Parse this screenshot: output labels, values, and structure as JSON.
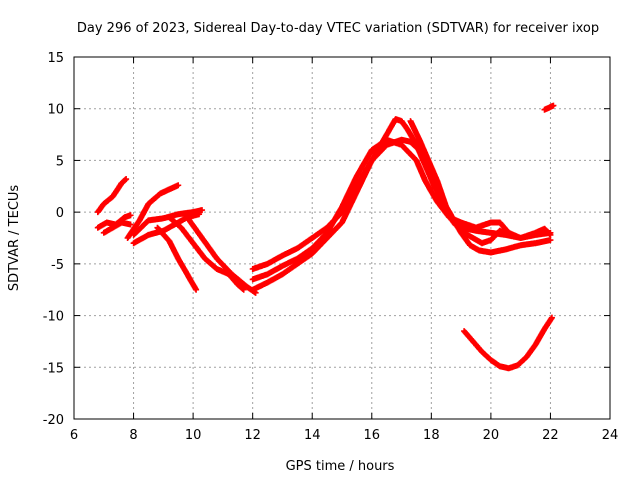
{
  "chart_data": {
    "type": "scatter",
    "title": "Day 296 of 2023, Sidereal Day-to-day VTEC variation (SDTVAR) for receiver ixop",
    "xlabel": "GPS time / hours",
    "ylabel": "SDTVAR / TECUs",
    "xlim": [
      6,
      24
    ],
    "ylim": [
      -20,
      15
    ],
    "xticks": [
      "6",
      "8",
      "10",
      "12",
      "14",
      "16",
      "18",
      "20",
      "22",
      "24"
    ],
    "yticks": [
      "15",
      "10",
      "5",
      "0",
      "-5",
      "-10",
      "-15",
      "-20"
    ],
    "grid": true,
    "marker_color": "#ff0000",
    "series": [
      {
        "name": "s1",
        "points": [
          [
            6.8,
            0.0
          ],
          [
            7.0,
            0.8
          ],
          [
            7.3,
            1.5
          ],
          [
            7.6,
            2.8
          ],
          [
            7.75,
            3.2
          ]
        ]
      },
      {
        "name": "s2",
        "points": [
          [
            6.8,
            -1.5
          ],
          [
            7.1,
            -1.0
          ],
          [
            7.4,
            -1.2
          ],
          [
            7.7,
            -0.5
          ],
          [
            7.9,
            -0.3
          ]
        ]
      },
      {
        "name": "s3",
        "points": [
          [
            7.0,
            -2.0
          ],
          [
            7.3,
            -1.5
          ],
          [
            7.6,
            -1.0
          ],
          [
            7.9,
            -1.2
          ]
        ]
      },
      {
        "name": "s4",
        "points": [
          [
            7.8,
            -2.5
          ],
          [
            8.2,
            -0.8
          ],
          [
            8.5,
            0.8
          ],
          [
            8.9,
            1.8
          ],
          [
            9.2,
            2.2
          ],
          [
            9.5,
            2.6
          ]
        ]
      },
      {
        "name": "s5",
        "points": [
          [
            8.0,
            -3.0
          ],
          [
            8.5,
            -2.2
          ],
          [
            9.0,
            -1.8
          ],
          [
            9.5,
            -1.0
          ],
          [
            9.8,
            -0.5
          ],
          [
            10.2,
            -0.2
          ]
        ]
      },
      {
        "name": "s6",
        "points": [
          [
            8.0,
            -2.2
          ],
          [
            8.5,
            -0.8
          ],
          [
            9.0,
            -0.6
          ],
          [
            9.5,
            -0.2
          ],
          [
            10.0,
            0.0
          ],
          [
            10.3,
            0.2
          ]
        ]
      },
      {
        "name": "s7",
        "points": [
          [
            8.8,
            -1.5
          ],
          [
            9.2,
            -2.8
          ],
          [
            9.5,
            -4.5
          ],
          [
            9.8,
            -6.0
          ],
          [
            10.1,
            -7.5
          ]
        ]
      },
      {
        "name": "s8",
        "points": [
          [
            9.2,
            -0.5
          ],
          [
            9.6,
            -1.5
          ],
          [
            10.0,
            -3.0
          ],
          [
            10.4,
            -4.5
          ],
          [
            10.8,
            -5.5
          ],
          [
            11.2,
            -6.0
          ],
          [
            11.5,
            -7.0
          ],
          [
            11.7,
            -7.5
          ]
        ]
      },
      {
        "name": "s9",
        "points": [
          [
            9.8,
            -0.5
          ],
          [
            10.3,
            -2.5
          ],
          [
            10.8,
            -4.5
          ],
          [
            11.3,
            -6.0
          ],
          [
            11.8,
            -7.2
          ],
          [
            12.1,
            -7.8
          ]
        ]
      },
      {
        "name": "s10",
        "points": [
          [
            12.0,
            -5.5
          ],
          [
            12.5,
            -5.0
          ],
          [
            13.0,
            -4.2
          ],
          [
            13.5,
            -3.5
          ],
          [
            14.0,
            -2.5
          ],
          [
            14.5,
            -1.5
          ],
          [
            15.0,
            0.0
          ],
          [
            15.5,
            2.5
          ],
          [
            16.0,
            5.0
          ],
          [
            16.5,
            7.5
          ],
          [
            16.8,
            9.0
          ],
          [
            17.0,
            8.8
          ],
          [
            17.2,
            8.0
          ],
          [
            17.5,
            6.5
          ],
          [
            17.8,
            4.5
          ],
          [
            18.1,
            2.5
          ],
          [
            18.4,
            1.0
          ],
          [
            18.7,
            -0.5
          ],
          [
            19.0,
            -2.0
          ],
          [
            19.3,
            -3.2
          ],
          [
            19.6,
            -3.7
          ],
          [
            20.0,
            -3.9
          ],
          [
            20.5,
            -3.6
          ],
          [
            21.0,
            -3.2
          ],
          [
            21.5,
            -3.0
          ],
          [
            22.0,
            -2.7
          ]
        ]
      },
      {
        "name": "s11",
        "points": [
          [
            12.0,
            -7.5
          ],
          [
            12.5,
            -6.8
          ],
          [
            13.0,
            -6.0
          ],
          [
            13.5,
            -5.0
          ],
          [
            14.0,
            -4.0
          ],
          [
            14.5,
            -2.5
          ],
          [
            15.0,
            -1.0
          ],
          [
            15.5,
            2.0
          ],
          [
            16.0,
            5.0
          ],
          [
            16.5,
            6.5
          ],
          [
            17.0,
            7.0
          ],
          [
            17.3,
            6.8
          ],
          [
            17.6,
            6.0
          ],
          [
            17.9,
            4.0
          ],
          [
            18.2,
            2.0
          ],
          [
            18.5,
            0.0
          ],
          [
            18.8,
            -1.2
          ],
          [
            19.0,
            -1.5
          ],
          [
            19.5,
            -1.8
          ],
          [
            20.0,
            -2.0
          ],
          [
            20.5,
            -2.2
          ],
          [
            21.0,
            -2.5
          ],
          [
            21.5,
            -2.2
          ],
          [
            22.0,
            -2.0
          ]
        ]
      },
      {
        "name": "s12",
        "points": [
          [
            12.0,
            -6.5
          ],
          [
            12.5,
            -6.0
          ],
          [
            13.0,
            -5.2
          ],
          [
            13.5,
            -4.5
          ],
          [
            14.0,
            -3.5
          ],
          [
            14.5,
            -2.0
          ],
          [
            15.0,
            0.5
          ],
          [
            15.5,
            3.5
          ],
          [
            16.0,
            6.0
          ],
          [
            16.5,
            7.0
          ],
          [
            17.0,
            6.5
          ],
          [
            17.5,
            5.0
          ],
          [
            17.8,
            3.0
          ],
          [
            18.2,
            1.0
          ],
          [
            18.6,
            -0.5
          ],
          [
            19.0,
            -1.0
          ],
          [
            19.5,
            -1.5
          ],
          [
            20.0,
            -1.0
          ],
          [
            20.3,
            -1.0
          ],
          [
            20.6,
            -2.0
          ],
          [
            21.0,
            -2.5
          ],
          [
            21.5,
            -2.0
          ],
          [
            21.8,
            -1.6
          ],
          [
            22.0,
            -2.2
          ]
        ]
      },
      {
        "name": "s13",
        "points": [
          [
            17.3,
            8.8
          ],
          [
            17.6,
            7.0
          ],
          [
            17.9,
            5.0
          ],
          [
            18.2,
            3.0
          ],
          [
            18.5,
            0.5
          ],
          [
            18.8,
            -1.0
          ],
          [
            19.1,
            -2.0
          ],
          [
            19.4,
            -2.5
          ],
          [
            19.7,
            -3.0
          ],
          [
            20.0,
            -2.7
          ],
          [
            20.3,
            -1.8
          ],
          [
            20.6,
            -2.2
          ]
        ]
      },
      {
        "name": "s14",
        "points": [
          [
            19.1,
            -11.5
          ],
          [
            19.4,
            -12.5
          ],
          [
            19.7,
            -13.5
          ],
          [
            20.0,
            -14.3
          ],
          [
            20.3,
            -14.9
          ],
          [
            20.6,
            -15.1
          ],
          [
            20.9,
            -14.8
          ],
          [
            21.2,
            -14.0
          ],
          [
            21.5,
            -12.8
          ],
          [
            21.8,
            -11.3
          ],
          [
            22.05,
            -10.2
          ]
        ]
      },
      {
        "name": "s15",
        "points": [
          [
            21.8,
            9.9
          ],
          [
            21.95,
            10.1
          ],
          [
            22.1,
            10.3
          ]
        ]
      }
    ]
  }
}
